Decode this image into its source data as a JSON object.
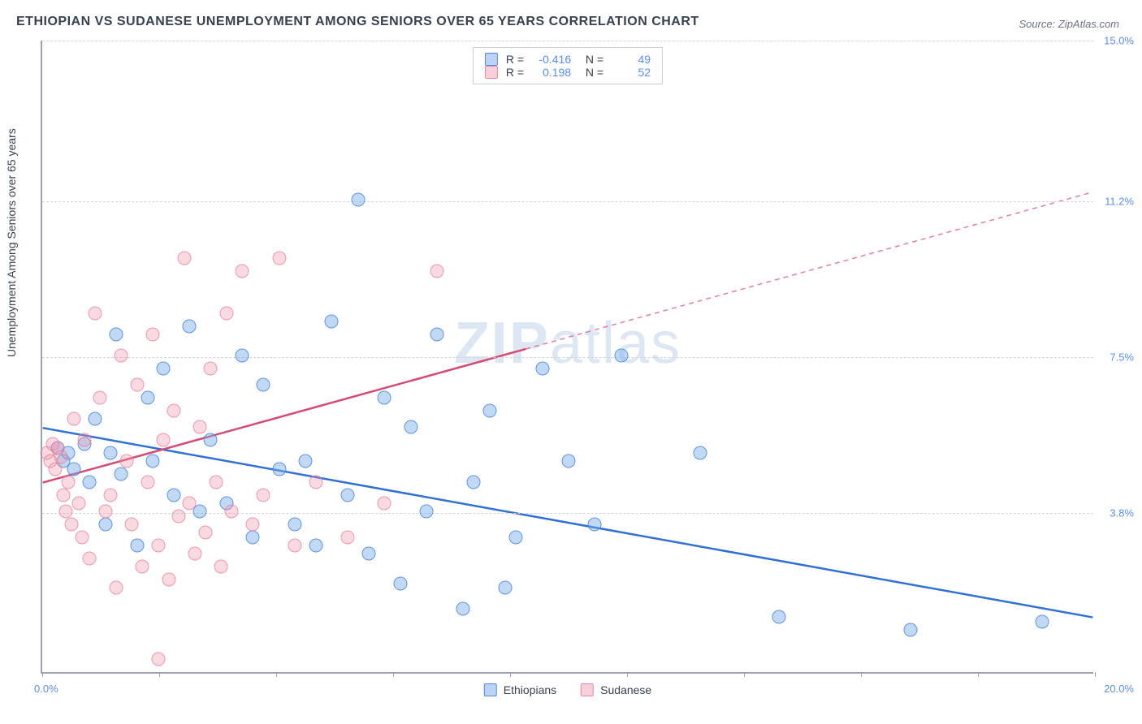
{
  "title": "ETHIOPIAN VS SUDANESE UNEMPLOYMENT AMONG SENIORS OVER 65 YEARS CORRELATION CHART",
  "source": "Source: ZipAtlas.com",
  "ylabel": "Unemployment Among Seniors over 65 years",
  "watermark": {
    "bold": "ZIP",
    "rest": "atlas"
  },
  "chart": {
    "type": "scatter",
    "xlim": [
      0,
      20
    ],
    "ylim": [
      0,
      15
    ],
    "x_tick_positions": [
      0,
      2.22,
      4.44,
      6.67,
      8.89,
      11.11,
      13.33,
      15.56,
      17.78,
      20
    ],
    "x_min_label": "0.0%",
    "x_max_label": "20.0%",
    "y_gridlines": [
      {
        "value": 3.8,
        "label": "3.8%"
      },
      {
        "value": 7.5,
        "label": "7.5%"
      },
      {
        "value": 11.2,
        "label": "11.2%"
      },
      {
        "value": 15.0,
        "label": "15.0%"
      }
    ],
    "series": [
      {
        "name": "Ethiopians",
        "color_class": "blue",
        "line_color": "#2f6fd6",
        "R": "-0.416",
        "N": "49",
        "trend": {
          "x1": 0,
          "y1": 5.8,
          "x2": 20,
          "y2": 1.3,
          "dash_split_x": 20
        },
        "points": [
          [
            0.3,
            5.3
          ],
          [
            0.4,
            5.0
          ],
          [
            0.5,
            5.2
          ],
          [
            0.6,
            4.8
          ],
          [
            0.8,
            5.4
          ],
          [
            0.9,
            4.5
          ],
          [
            1.0,
            6.0
          ],
          [
            1.2,
            3.5
          ],
          [
            1.3,
            5.2
          ],
          [
            1.4,
            8.0
          ],
          [
            1.5,
            4.7
          ],
          [
            1.8,
            3.0
          ],
          [
            2.0,
            6.5
          ],
          [
            2.1,
            5.0
          ],
          [
            2.3,
            7.2
          ],
          [
            2.5,
            4.2
          ],
          [
            2.8,
            8.2
          ],
          [
            3.0,
            3.8
          ],
          [
            3.2,
            5.5
          ],
          [
            3.5,
            4.0
          ],
          [
            3.8,
            7.5
          ],
          [
            4.0,
            3.2
          ],
          [
            4.2,
            6.8
          ],
          [
            4.5,
            4.8
          ],
          [
            4.8,
            3.5
          ],
          [
            5.0,
            5.0
          ],
          [
            5.2,
            3.0
          ],
          [
            5.5,
            8.3
          ],
          [
            5.8,
            4.2
          ],
          [
            6.0,
            11.2
          ],
          [
            6.2,
            2.8
          ],
          [
            6.5,
            6.5
          ],
          [
            6.8,
            2.1
          ],
          [
            7.0,
            5.8
          ],
          [
            7.3,
            3.8
          ],
          [
            7.5,
            8.0
          ],
          [
            8.0,
            1.5
          ],
          [
            8.2,
            4.5
          ],
          [
            8.5,
            6.2
          ],
          [
            8.8,
            2.0
          ],
          [
            9.0,
            3.2
          ],
          [
            9.5,
            7.2
          ],
          [
            10.0,
            5.0
          ],
          [
            10.5,
            3.5
          ],
          [
            11.0,
            7.5
          ],
          [
            12.5,
            5.2
          ],
          [
            14.0,
            1.3
          ],
          [
            16.5,
            1.0
          ],
          [
            19.0,
            1.2
          ]
        ]
      },
      {
        "name": "Sudanese",
        "color_class": "pink",
        "line_color": "#d64a72",
        "R": "0.198",
        "N": "52",
        "trend": {
          "x1": 0,
          "y1": 4.5,
          "x2": 20,
          "y2": 11.4,
          "dash_split_x": 9.2
        },
        "points": [
          [
            0.1,
            5.2
          ],
          [
            0.15,
            5.0
          ],
          [
            0.2,
            5.4
          ],
          [
            0.25,
            4.8
          ],
          [
            0.3,
            5.3
          ],
          [
            0.35,
            5.1
          ],
          [
            0.4,
            4.2
          ],
          [
            0.45,
            3.8
          ],
          [
            0.5,
            4.5
          ],
          [
            0.55,
            3.5
          ],
          [
            0.6,
            6.0
          ],
          [
            0.7,
            4.0
          ],
          [
            0.75,
            3.2
          ],
          [
            0.8,
            5.5
          ],
          [
            0.9,
            2.7
          ],
          [
            1.0,
            8.5
          ],
          [
            1.1,
            6.5
          ],
          [
            1.2,
            3.8
          ],
          [
            1.3,
            4.2
          ],
          [
            1.4,
            2.0
          ],
          [
            1.5,
            7.5
          ],
          [
            1.6,
            5.0
          ],
          [
            1.7,
            3.5
          ],
          [
            1.8,
            6.8
          ],
          [
            1.9,
            2.5
          ],
          [
            2.0,
            4.5
          ],
          [
            2.1,
            8.0
          ],
          [
            2.2,
            3.0
          ],
          [
            2.3,
            5.5
          ],
          [
            2.4,
            2.2
          ],
          [
            2.5,
            6.2
          ],
          [
            2.6,
            3.7
          ],
          [
            2.7,
            9.8
          ],
          [
            2.8,
            4.0
          ],
          [
            2.9,
            2.8
          ],
          [
            3.0,
            5.8
          ],
          [
            3.1,
            3.3
          ],
          [
            3.2,
            7.2
          ],
          [
            3.3,
            4.5
          ],
          [
            3.4,
            2.5
          ],
          [
            3.5,
            8.5
          ],
          [
            3.6,
            3.8
          ],
          [
            3.8,
            9.5
          ],
          [
            4.0,
            3.5
          ],
          [
            4.2,
            4.2
          ],
          [
            4.5,
            9.8
          ],
          [
            4.8,
            3.0
          ],
          [
            5.2,
            4.5
          ],
          [
            5.8,
            3.2
          ],
          [
            6.5,
            4.0
          ],
          [
            7.5,
            9.5
          ],
          [
            2.2,
            0.3
          ]
        ]
      }
    ]
  }
}
